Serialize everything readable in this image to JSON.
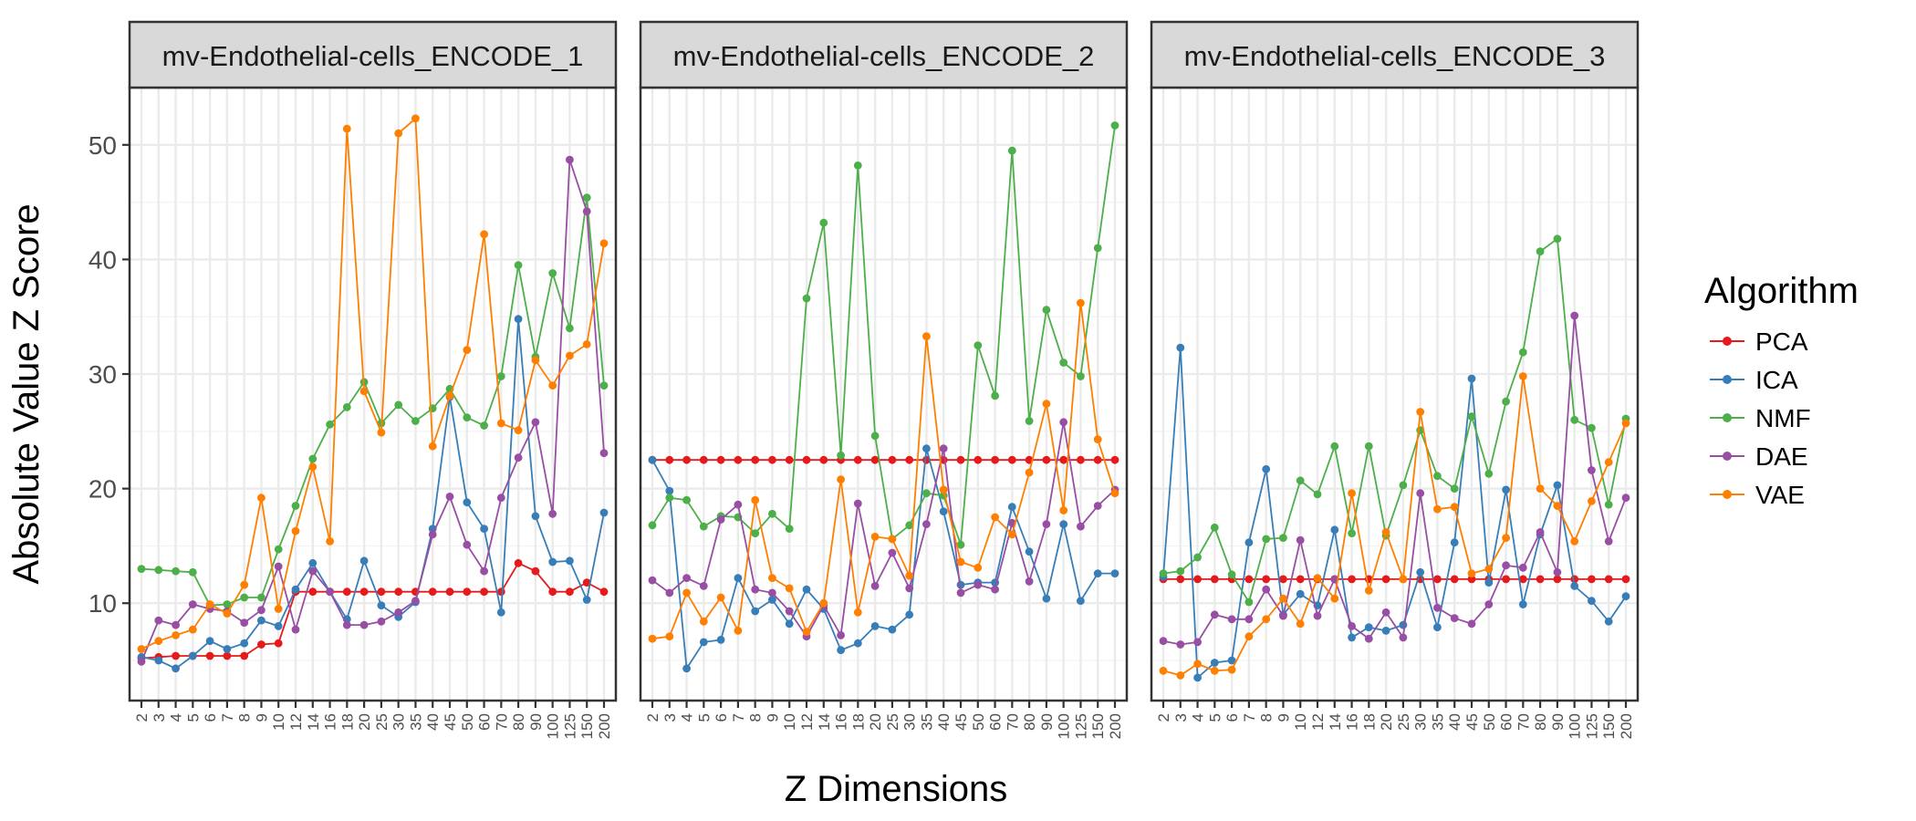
{
  "chart_data": {
    "type": "line",
    "ylabel": "Absolute Value Z Score",
    "xlabel": "Z Dimensions",
    "x": [
      "2",
      "3",
      "4",
      "5",
      "6",
      "7",
      "8",
      "9",
      "10",
      "12",
      "14",
      "16",
      "18",
      "20",
      "25",
      "30",
      "35",
      "40",
      "45",
      "50",
      "60",
      "70",
      "80",
      "90",
      "100",
      "125",
      "150",
      "200"
    ],
    "yticks": [
      10,
      20,
      30,
      40,
      50
    ],
    "ylim": [
      1.5,
      55
    ],
    "grid": true,
    "legend": {
      "title": "Algorithm",
      "position": "right",
      "entries": [
        "PCA",
        "ICA",
        "NMF",
        "DAE",
        "VAE"
      ]
    },
    "colors": {
      "PCA": "#E41A1C",
      "ICA": "#377EB8",
      "NMF": "#4DAF4A",
      "DAE": "#984EA3",
      "VAE": "#FF7F00"
    },
    "panels": [
      {
        "title": "mv-Endothelial-cells_ENCODE_1",
        "series": [
          {
            "name": "PCA",
            "values": [
              5.2,
              5.3,
              5.4,
              5.4,
              5.4,
              5.4,
              5.4,
              6.4,
              6.5,
              11.0,
              11.0,
              11.0,
              11.0,
              11.0,
              11.0,
              11.0,
              11.0,
              11.0,
              11.0,
              11.0,
              11.0,
              11.0,
              13.5,
              12.8,
              11.0,
              11.0,
              11.8,
              11.0
            ]
          },
          {
            "name": "ICA",
            "values": [
              5.3,
              5.0,
              4.3,
              5.4,
              6.7,
              6.0,
              6.5,
              8.5,
              8.0,
              11.2,
              13.5,
              11.0,
              8.6,
              13.7,
              9.8,
              8.8,
              10.1,
              16.5,
              28.0,
              18.8,
              16.5,
              9.2,
              34.8,
              17.6,
              13.6,
              13.7,
              10.3,
              17.9
            ]
          },
          {
            "name": "NMF",
            "values": [
              13.0,
              12.9,
              12.8,
              12.7,
              9.8,
              9.9,
              10.5,
              10.5,
              14.7,
              18.5,
              22.6,
              25.6,
              27.1,
              29.3,
              25.7,
              27.3,
              25.9,
              27.0,
              28.7,
              26.2,
              25.5,
              29.8,
              39.5,
              31.5,
              38.8,
              34.0,
              45.4,
              29.0
            ]
          },
          {
            "name": "DAE",
            "values": [
              4.9,
              8.5,
              8.1,
              9.9,
              9.5,
              9.3,
              8.3,
              9.4,
              13.2,
              7.7,
              12.8,
              11.0,
              8.1,
              8.1,
              8.4,
              9.2,
              10.2,
              16.0,
              19.3,
              15.1,
              12.8,
              19.2,
              22.7,
              25.8,
              17.8,
              48.7,
              44.2,
              23.1
            ]
          },
          {
            "name": "VAE",
            "values": [
              6.0,
              6.7,
              7.2,
              7.7,
              9.9,
              9.1,
              11.6,
              19.2,
              9.5,
              16.3,
              21.9,
              15.4,
              51.4,
              28.5,
              24.9,
              51.0,
              52.3,
              23.7,
              28.1,
              32.1,
              42.2,
              25.7,
              25.1,
              31.2,
              29.0,
              31.6,
              32.6,
              41.4
            ]
          }
        ]
      },
      {
        "title": "mv-Endothelial-cells_ENCODE_2",
        "series": [
          {
            "name": "PCA",
            "values": [
              22.5,
              22.5,
              22.5,
              22.5,
              22.5,
              22.5,
              22.5,
              22.5,
              22.5,
              22.5,
              22.5,
              22.5,
              22.5,
              22.5,
              22.5,
              22.5,
              22.5,
              22.5,
              22.5,
              22.5,
              22.5,
              22.5,
              22.5,
              22.5,
              22.5,
              22.5,
              22.5,
              22.5
            ]
          },
          {
            "name": "ICA",
            "values": [
              22.5,
              19.8,
              4.3,
              6.6,
              6.8,
              12.2,
              9.3,
              10.3,
              8.2,
              11.2,
              9.5,
              5.9,
              6.5,
              8.0,
              7.7,
              9.0,
              23.5,
              18.0,
              11.6,
              11.8,
              11.8,
              18.4,
              14.5,
              10.4,
              16.9,
              10.2,
              12.6,
              12.6
            ]
          },
          {
            "name": "NMF",
            "values": [
              16.8,
              19.2,
              19.0,
              16.7,
              17.6,
              17.5,
              16.1,
              17.8,
              16.5,
              36.6,
              43.2,
              22.9,
              48.2,
              24.6,
              15.6,
              16.8,
              19.6,
              19.4,
              15.1,
              32.5,
              28.1,
              49.5,
              25.9,
              35.6,
              31.0,
              29.8,
              41.0,
              51.7
            ]
          },
          {
            "name": "DAE",
            "values": [
              12.0,
              10.9,
              12.2,
              11.5,
              17.3,
              18.6,
              11.2,
              10.9,
              9.3,
              7.1,
              9.8,
              7.2,
              18.7,
              11.5,
              14.4,
              11.3,
              16.9,
              23.5,
              10.9,
              11.6,
              11.2,
              17.0,
              11.9,
              16.9,
              25.8,
              16.7,
              18.5,
              19.9
            ]
          },
          {
            "name": "VAE",
            "values": [
              6.9,
              7.1,
              10.9,
              8.4,
              10.5,
              7.6,
              19.0,
              12.2,
              11.3,
              7.5,
              10.0,
              20.8,
              9.2,
              15.8,
              15.6,
              12.4,
              33.3,
              19.9,
              13.6,
              13.1,
              17.5,
              16.0,
              21.4,
              27.4,
              18.1,
              36.2,
              24.3,
              19.6
            ]
          }
        ]
      },
      {
        "title": "mv-Endothelial-cells_ENCODE_3",
        "series": [
          {
            "name": "PCA",
            "values": [
              12.1,
              12.1,
              12.1,
              12.1,
              12.1,
              12.1,
              12.1,
              12.1,
              12.1,
              12.1,
              12.1,
              12.1,
              12.1,
              12.1,
              12.1,
              12.1,
              12.1,
              12.1,
              12.1,
              12.1,
              12.1,
              12.1,
              12.1,
              12.1,
              12.1,
              12.1,
              12.1,
              12.1
            ]
          },
          {
            "name": "ICA",
            "values": [
              12.3,
              32.3,
              3.5,
              4.8,
              5.0,
              15.3,
              21.7,
              9.0,
              10.8,
              9.8,
              16.4,
              7.0,
              7.9,
              7.6,
              8.1,
              12.7,
              7.9,
              15.3,
              29.6,
              11.8,
              19.9,
              9.9,
              16.0,
              20.3,
              11.5,
              10.2,
              8.4,
              10.6
            ]
          },
          {
            "name": "NMF",
            "values": [
              12.6,
              12.8,
              14.0,
              16.6,
              12.5,
              10.1,
              15.6,
              15.7,
              20.7,
              19.5,
              23.7,
              16.1,
              23.7,
              15.9,
              20.3,
              25.1,
              21.1,
              20.0,
              26.3,
              21.3,
              27.6,
              31.9,
              40.7,
              41.8,
              26.0,
              25.3,
              18.6,
              26.1
            ]
          },
          {
            "name": "DAE",
            "values": [
              6.7,
              6.4,
              6.6,
              9.0,
              8.6,
              8.6,
              11.2,
              8.9,
              15.5,
              8.9,
              12.1,
              8.0,
              6.9,
              9.2,
              7.0,
              19.6,
              9.6,
              8.7,
              8.2,
              9.9,
              13.3,
              13.1,
              16.2,
              12.7,
              35.1,
              21.6,
              15.4,
              19.2
            ]
          },
          {
            "name": "VAE",
            "values": [
              4.1,
              3.7,
              4.7,
              4.1,
              4.2,
              7.1,
              8.6,
              10.4,
              8.2,
              12.2,
              10.4,
              19.6,
              11.1,
              16.2,
              12.1,
              26.7,
              18.2,
              18.4,
              12.6,
              13.0,
              15.7,
              29.8,
              20.0,
              18.5,
              15.4,
              18.9,
              22.3,
              25.7
            ]
          }
        ]
      }
    ]
  }
}
